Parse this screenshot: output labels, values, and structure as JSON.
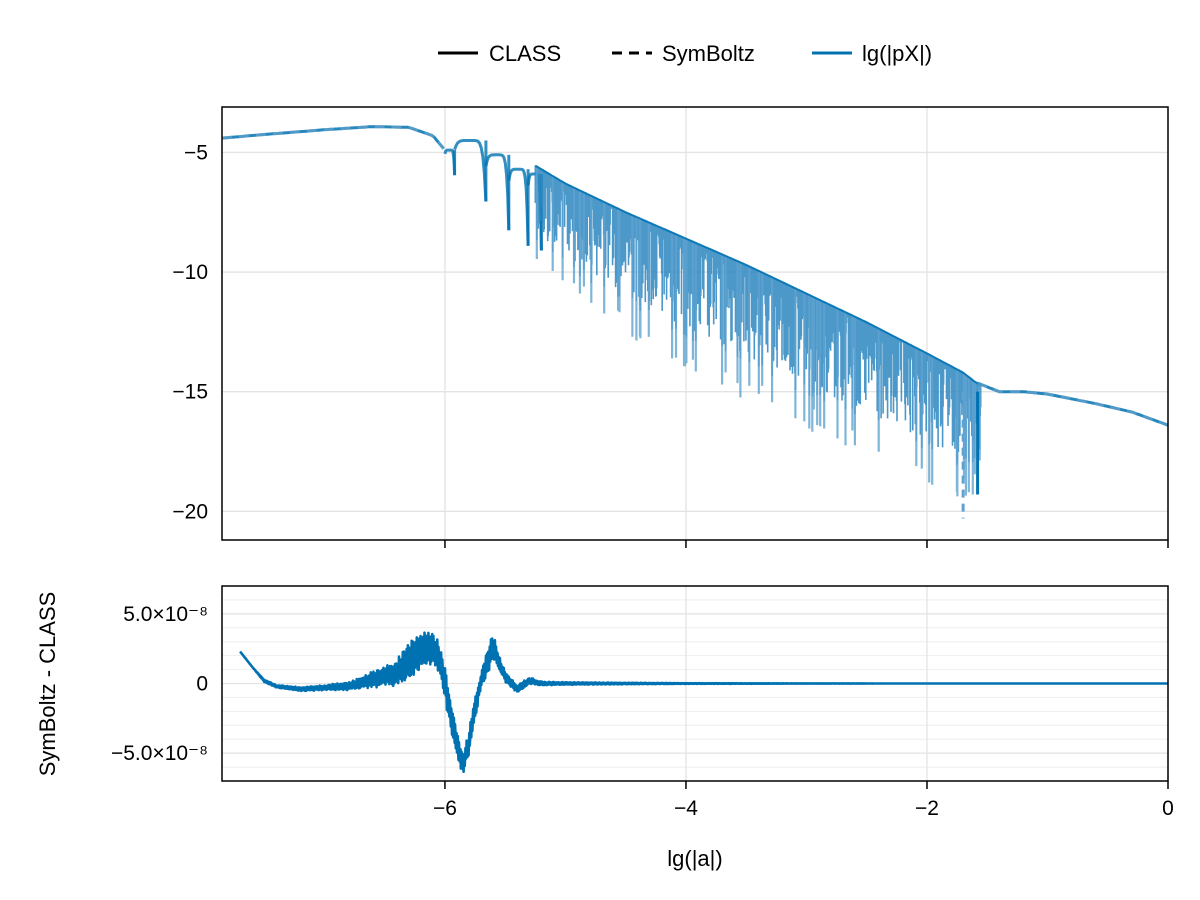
{
  "chart_data": [
    {
      "type": "line",
      "panel": "top",
      "title": "",
      "xlabel": "",
      "ylabel": "",
      "xlim": [
        -7.85,
        0
      ],
      "ylim": [
        -21.2,
        -3.1
      ],
      "yticks": [
        -20,
        -15,
        -10,
        -5
      ],
      "ytick_labels": [
        "−20",
        "−15",
        "−10",
        "−5"
      ],
      "xticks": [
        -6,
        -4,
        -2,
        0
      ],
      "grid": true,
      "legend": {
        "placement": "top-center",
        "entries": [
          {
            "label": "CLASS",
            "style": "solid",
            "color": "#000000"
          },
          {
            "label": "SymBoltz",
            "style": "dashed",
            "color": "#000000"
          },
          {
            "label": "lg(|pX|)",
            "style": "solid",
            "color": "#0072b2"
          }
        ]
      },
      "series": [
        {
          "name": "lg(|pX|)",
          "color": "#0072b2",
          "envelope_x": [
            -7.85,
            -7.5,
            -7.0,
            -6.6,
            -6.3,
            -6.1,
            -6.0,
            -5.9,
            -5.5,
            -5.0,
            -4.5,
            -4.0,
            -3.5,
            -3.0,
            -2.5,
            -2.0,
            -1.7,
            -1.6,
            -1.4,
            -1.2,
            -1.0,
            -0.6,
            -0.3,
            0.0
          ],
          "envelope_upper": [
            -4.4,
            -4.25,
            -4.05,
            -3.92,
            -3.95,
            -4.3,
            -4.9,
            -4.9,
            -4.8,
            -6.3,
            -7.5,
            -8.6,
            -9.7,
            -10.9,
            -12.1,
            -13.4,
            -14.2,
            -14.6,
            -15.0,
            -15.0,
            -15.1,
            -15.5,
            -15.85,
            -16.4
          ],
          "envelope_lower": [
            -4.4,
            -4.25,
            -4.05,
            -3.92,
            -3.95,
            -4.3,
            -4.9,
            -4.9,
            -8.3,
            -11.0,
            -12.6,
            -14.2,
            -15.4,
            -16.6,
            -17.8,
            -19.0,
            -19.5,
            -19.3,
            -15.0,
            -15.0,
            -15.1,
            -15.5,
            -15.85,
            -16.4
          ],
          "dips": [
            {
              "x": -5.92,
              "y": -5.95
            },
            {
              "x": -5.66,
              "y": -7.05
            },
            {
              "x": -5.47,
              "y": -8.25
            },
            {
              "x": -5.31,
              "y": -8.9
            },
            {
              "x": -5.2,
              "y": -9.1
            },
            {
              "x": -1.7,
              "y": -20.3
            }
          ]
        }
      ]
    },
    {
      "type": "line",
      "panel": "bottom",
      "xlabel": "lg(|a|)",
      "ylabel": "SymBoltz - CLASS",
      "xlim": [
        -7.85,
        0
      ],
      "ylim": [
        -7e-08,
        7e-08
      ],
      "yticks": [
        -5e-08,
        0,
        5e-08
      ],
      "ytick_labels": [
        "−5.0×10⁻⁸",
        "0",
        "5.0×10⁻⁸"
      ],
      "xticks": [
        -6,
        -4,
        -2,
        0
      ],
      "xtick_labels": [
        "−6",
        "−4",
        "−2",
        "0"
      ],
      "grid": true,
      "series": [
        {
          "name": "SymBoltz - CLASS",
          "color": "#0072b2",
          "x": [
            -7.7,
            -7.6,
            -7.5,
            -7.4,
            -7.2,
            -7.0,
            -6.8,
            -6.6,
            -6.4,
            -6.3,
            -6.2,
            -6.1,
            -6.05,
            -6.0,
            -5.95,
            -5.9,
            -5.85,
            -5.8,
            -5.75,
            -5.7,
            -5.65,
            -5.6,
            -5.55,
            -5.5,
            -5.4,
            -5.3,
            -5.2,
            -5.0,
            -4.5,
            -4.0,
            -3.0,
            -2.0,
            -1.0,
            0.0
          ],
          "y": [
            2.3e-08,
            1.2e-08,
            2e-09,
            -2e-09,
            -4e-09,
            -3e-09,
            -2e-09,
            3e-09,
            8e-09,
            1.6e-08,
            2.4e-08,
            2.6e-08,
            1.8e-08,
            1e-09,
            -2.4e-08,
            -4.3e-08,
            -5.9e-08,
            -4.2e-08,
            -1.8e-08,
            2e-09,
            1.5e-08,
            2.7e-08,
            1.4e-08,
            5e-09,
            -4e-09,
            2e-09,
            0,
            0,
            0,
            0,
            0,
            0,
            0,
            0
          ],
          "amplitude": [
            0,
            0,
            1e-09,
            1e-09,
            1.5e-09,
            2e-09,
            3e-09,
            6e-09,
            1e-08,
            1.4e-08,
            1.4e-08,
            1.2e-08,
            1.2e-08,
            1.2e-08,
            1.2e-08,
            1.1e-08,
            8e-09,
            9e-09,
            9e-09,
            6e-09,
            9e-09,
            1e-08,
            6e-09,
            4e-09,
            3e-09,
            2.5e-09,
            1.5e-09,
            1e-09,
            6e-10,
            3e-10,
            1e-10,
            0,
            0,
            0
          ]
        }
      ]
    }
  ]
}
